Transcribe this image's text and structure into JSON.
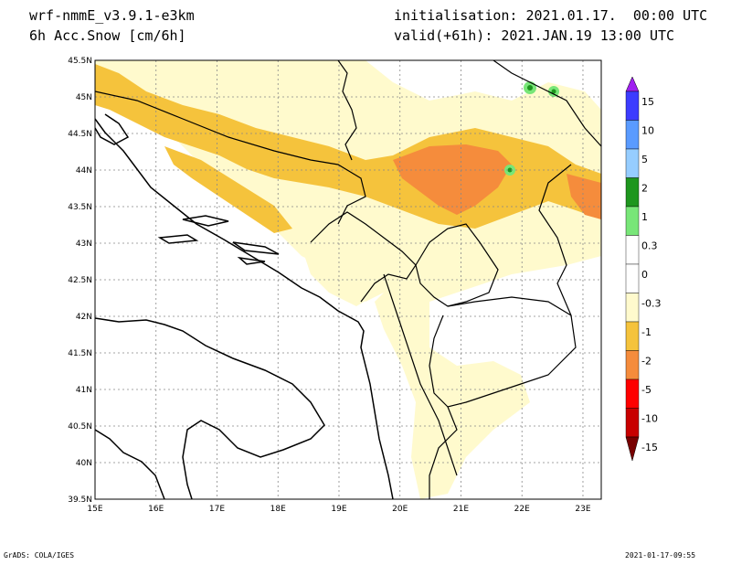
{
  "header": {
    "model": "wrf-nmmE_v3.9.1-e3km",
    "field": "6h Acc.Snow [cm/6h]",
    "init": "initialisation: 2021.01.17.  00:00 UTC",
    "valid": "valid(+61h): 2021.JAN.19 13:00 UTC"
  },
  "footer": {
    "credit": "GrADS: COLA/IGES",
    "timestamp": "2021-01-17-09:55"
  },
  "map": {
    "lon_range": [
      15,
      23.3
    ],
    "lat_range": [
      39.5,
      45.5
    ],
    "lat_labels": [
      "45.5N",
      "45N",
      "44.5N",
      "44N",
      "43.5N",
      "43N",
      "42.5N",
      "42N",
      "41.5N",
      "41N",
      "40.5N",
      "40N",
      "39.5N"
    ],
    "lon_labels": [
      "15E",
      "16E",
      "17E",
      "18E",
      "19E",
      "20E",
      "21E",
      "22E",
      "23E"
    ],
    "gridlines": true
  },
  "colorbar": {
    "labels": [
      "15",
      "10",
      "5",
      "2",
      "1",
      "0.3",
      "0",
      "-0.3",
      "-1",
      "-2",
      "-5",
      "-10",
      "-15"
    ],
    "colors": [
      "#a020f0",
      "#3c3cff",
      "#5a9bff",
      "#96cdff",
      "#1e961e",
      "#78e678",
      "#ffffff",
      "#ffffff",
      "#fffacd",
      "#f5c33c",
      "#f58c3c",
      "#ff0000",
      "#c80000",
      "#780000"
    ]
  }
}
